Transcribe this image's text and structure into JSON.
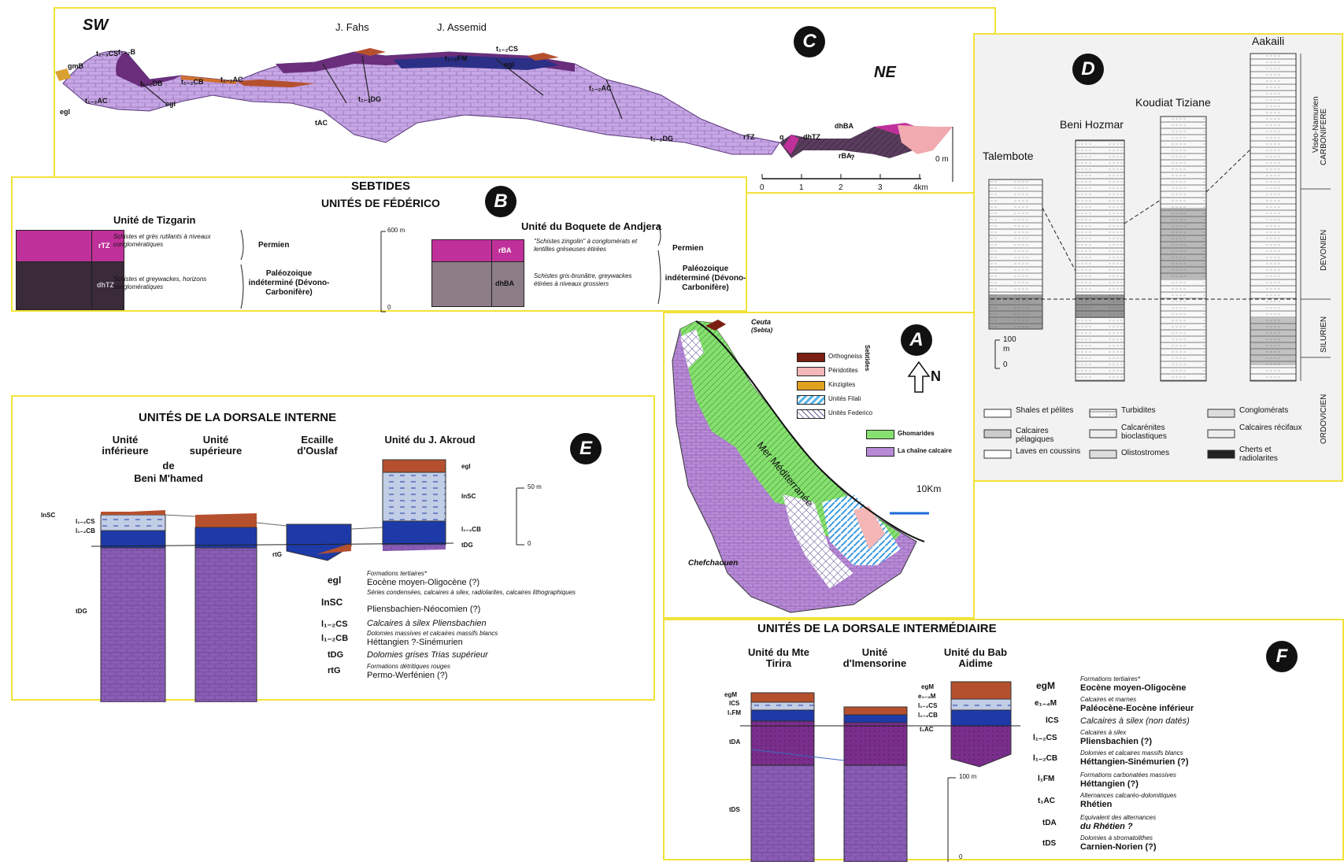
{
  "panel_c": {
    "letter": "C",
    "sw": "SW",
    "ne": "NE",
    "peak1": "J. Fahs",
    "peak2": "J. Assemid",
    "scale_ticks": [
      "0",
      "1",
      "2",
      "3",
      "4km"
    ],
    "zero_m": "0 m",
    "codes": [
      "gmB",
      "t₁₋₃CS",
      "t₁₋₂B",
      "t₁₋₂DB",
      "t₁₋₂AC",
      "egl",
      "t₁₋₂CB",
      "t₁₋₂AC",
      "egl",
      "t₁₋₂FM",
      "t₁₋₂CS",
      "egl",
      "t₁₋₂DG",
      "t₁₋₂AC",
      "tAC",
      "t₁₋₂DG",
      "rTZ",
      "q",
      "dhTZ",
      "dhBA",
      "rBA",
      "?"
    ]
  },
  "panel_b": {
    "letter": "B",
    "title": "SEBTIDES",
    "subtitle": "UNITÉS DE FÉDÉRICO",
    "left": {
      "name": "Unité de Tizgarin",
      "code_top": "rTZ",
      "code_bot": "dhTZ",
      "desc_top": "Schistes et grès rutilants à niveaux conglomératiques",
      "desc_bot": "Schistes et greywackes, horizons conglomératiques",
      "age_top": "Permien",
      "age_bot": "Paléozoique indéterminé (Dévono-Carbonifère)"
    },
    "scale_top": "600 m",
    "scale_bot": "0",
    "right": {
      "name": "Unité du Boquete de Andjera",
      "code_top": "rBA",
      "code_bot": "dhBA",
      "desc_top": "\"Schistes zingolin\" à conglomérats et lentilles gréseuses étirées",
      "desc_bot": "Schistes gris-brunâtre, greywackes étirées à niveaux grossiers",
      "age_top": "Permien",
      "age_bot": "Paléozoique indéterminé (Dévono-Carbonifère)"
    }
  },
  "panel_d": {
    "letter": "D",
    "columns": [
      "Talembote",
      "Beni Hozmar",
      "Koudiat Tiziane",
      "Aakaili"
    ],
    "periods": [
      "Viséo-Namurien",
      "CARBONIFERE",
      "DEVONIEN",
      "SILURIEN",
      "ORDOVICIEN"
    ],
    "scale_top": "100",
    "scale_unit": "m",
    "scale_bot": "0",
    "legend": [
      "Shales et pélites",
      "Turbidites",
      "Conglomérats",
      "Calcaires pélagiques",
      "Calcarénites bioclastiques",
      "Calcaires récifaux",
      "Laves en coussins",
      "Olistostromes",
      "Cherts et radiolarites"
    ]
  },
  "panel_a": {
    "letter": "A",
    "ceuta": "Ceuta",
    "sebta": "(Sebta)",
    "sea": "Mer Méditerranée",
    "town": "Chefchaouen",
    "north": "N",
    "scale": "10Km",
    "group_label": "Sebtides",
    "legend": [
      {
        "label": "Orthogneiss",
        "color": "#7a1f12"
      },
      {
        "label": "Péridotites",
        "color": "#f4b6b6"
      },
      {
        "label": "Kinzigites",
        "color": "#e0a020"
      },
      {
        "label": "Unités Filali",
        "color": "#5ab4e6"
      },
      {
        "label": "Unités Federico",
        "color": "#ffffff"
      },
      {
        "label": "Ghomarides",
        "color": "#86e070"
      },
      {
        "label": "La chaîne calcaire",
        "color": "#b78ad6"
      }
    ]
  },
  "panel_e": {
    "letter": "E",
    "title": "UNITÉS DE LA DORSALE INTERNE",
    "col1": "Unité inférieure",
    "col2": "Unité supérieure",
    "col12": "de",
    "col12b": "Beni M'hamed",
    "col3": "Ecaille d'Ouslaf",
    "col4": "Unité du J. Akroud",
    "scale_top": "50 m",
    "scale_bot": "0",
    "side_codes": [
      "InSC",
      "l₁₋₂CS",
      "l₁₋₂CB",
      "tDG",
      "rtG",
      "egl",
      "InSC",
      "l₁₋₂CB",
      "tDG"
    ],
    "legend": [
      {
        "code": "egl",
        "desc": "Formations tertiaires*",
        "age": "Eocène moyen-Oligocène (?)"
      },
      {
        "code": "InSC",
        "desc": "Séries condensées, calcaires à silex, radiolarites, calcaires lithographiques",
        "age": "Pliensbachien-Néocomien (?)"
      },
      {
        "code": "l₁₋₂CS",
        "desc": "Calcaires à silex Pliensbachien",
        "age": ""
      },
      {
        "code": "l₁₋₂CB",
        "desc": "Dolomies massives et calcaires massifs blancs",
        "age": "Héttangien ?-Sinémurien"
      },
      {
        "code": "tDG",
        "desc": "Dolomies grises Trias supérieur",
        "age": ""
      },
      {
        "code": "rtG",
        "desc": "Formations détritiques rouges",
        "age": "Permo-Werfénien (?)"
      }
    ]
  },
  "panel_f": {
    "letter": "F",
    "title": "UNITÉS DE LA DORSALE INTERMÉDIAIRE",
    "col1": "Unité du Mte Tirira",
    "col2": "Unité d'Imensorine",
    "col3": "Unité du Bab Aidime",
    "scale_top": "100 m",
    "scale_bot": "0",
    "side_codes": [
      "egM",
      "lCS",
      "l₁FM",
      "tDA",
      "tDS",
      "egM",
      "e₁₋₄M",
      "l₁₋₂CS",
      "l₁₋₂CB",
      "t₁AC"
    ],
    "legend": [
      {
        "code": "egM",
        "desc": "Formations tertiaires*",
        "age": "Eocène moyen-Oligocène"
      },
      {
        "code": "e₁₋₄M",
        "desc": "Calcaires et marnes",
        "age": "Paléocène-Eocène inférieur"
      },
      {
        "code": "lCS",
        "desc": "Calcaires à silex (non datés)",
        "age": ""
      },
      {
        "code": "l₁₋₂CS",
        "desc": "Calcaires à silex",
        "age": "Pliensbachien (?)"
      },
      {
        "code": "l₁₋₂CB",
        "desc": "Dolomies et calcaires massifs blancs",
        "age": "Héttangien-Sinémurien (?)"
      },
      {
        "code": "l₁FM",
        "desc": "Formations carbonatées massives",
        "age": "Héttangien (?)"
      },
      {
        "code": "t₁AC",
        "desc": "Alternances calcaréo-dolomitiques",
        "age": "Rhétien"
      },
      {
        "code": "tDA",
        "desc": "Equivalent des alternances",
        "age": "du Rhétien ?"
      },
      {
        "code": "tDS",
        "desc": "Dolomies à stromatolithes",
        "age": "Carnien-Norien (?)"
      }
    ]
  },
  "colors": {
    "panel_border": "#f2e23a",
    "purple": "#b78ad6",
    "dark_purple": "#6a2e7c",
    "blue": "#1d3aa8",
    "brown": "#b5502e",
    "magenta": "#c0309a",
    "dark": "#3a2a3a"
  }
}
